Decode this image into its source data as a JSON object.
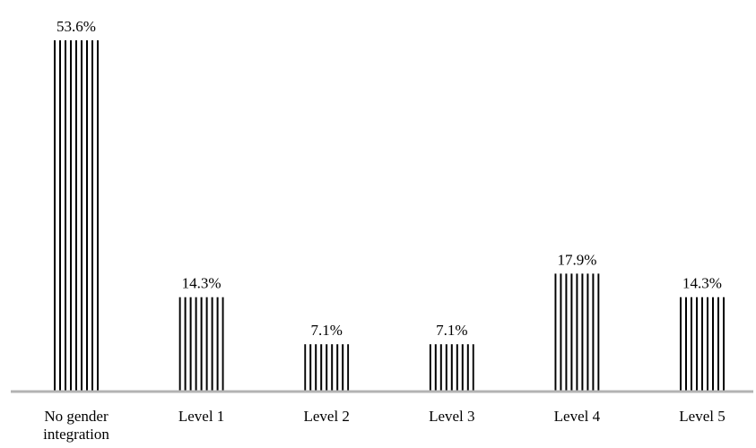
{
  "chart_data": {
    "type": "bar",
    "categories": [
      "No gender integration",
      "Level 1",
      "Level 2",
      "Level 3",
      "Level 4",
      "Level 5"
    ],
    "category_label_lines": [
      [
        "No gender",
        "integration"
      ],
      [
        "Level 1"
      ],
      [
        "Level 2"
      ],
      [
        "Level 3"
      ],
      [
        "Level 4"
      ],
      [
        "Level 5"
      ]
    ],
    "values": [
      53.6,
      14.3,
      7.1,
      7.1,
      17.9,
      14.3
    ],
    "value_labels": [
      "53.6%",
      "14.3%",
      "7.1%",
      "7.1%",
      "17.9%",
      "14.3%"
    ],
    "title": "",
    "xlabel": "",
    "ylabel": "",
    "ylim": [
      0,
      53.6
    ],
    "grid": false,
    "legend": "none",
    "bar_pattern": "vertical-stripes",
    "colors": {
      "bar_stripe": "#000000",
      "bar_background": "#ffffff",
      "axis": "#b3b3b3",
      "text": "#000000"
    }
  }
}
